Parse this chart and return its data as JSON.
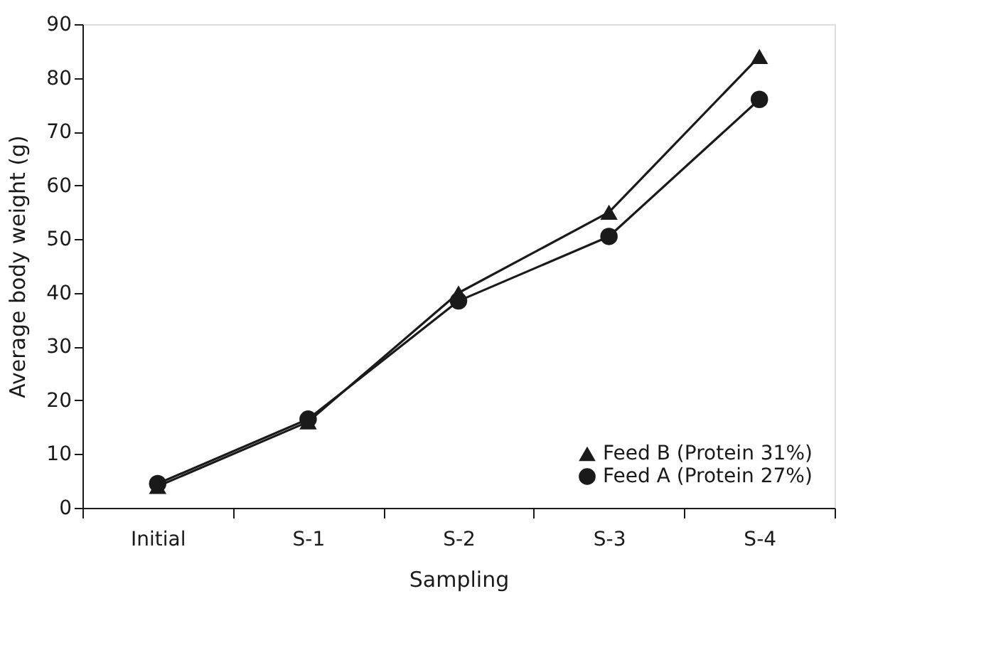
{
  "chart_data": {
    "type": "line",
    "xlabel": "Sampling",
    "ylabel": "Average body weight (g)",
    "categories": [
      "Initial",
      "S-1",
      "S-2",
      "S-3",
      "S-4"
    ],
    "series": [
      {
        "name": "Feed B (Protein 31%)",
        "color": "#1a1a1a",
        "marker": "triangle",
        "values": [
          4,
          16,
          40,
          55,
          84
        ]
      },
      {
        "name": "Feed A (Protein 27%)",
        "color": "#1a1a1a",
        "marker": "circle",
        "values": [
          4.5,
          16.5,
          38.5,
          50.5,
          76
        ]
      }
    ],
    "ylim": [
      0,
      90
    ],
    "yticks": [
      0,
      10,
      20,
      30,
      40,
      50,
      60,
      70,
      80,
      90
    ],
    "grid": false,
    "legend": "bottom right",
    "line_style": "solid"
  }
}
